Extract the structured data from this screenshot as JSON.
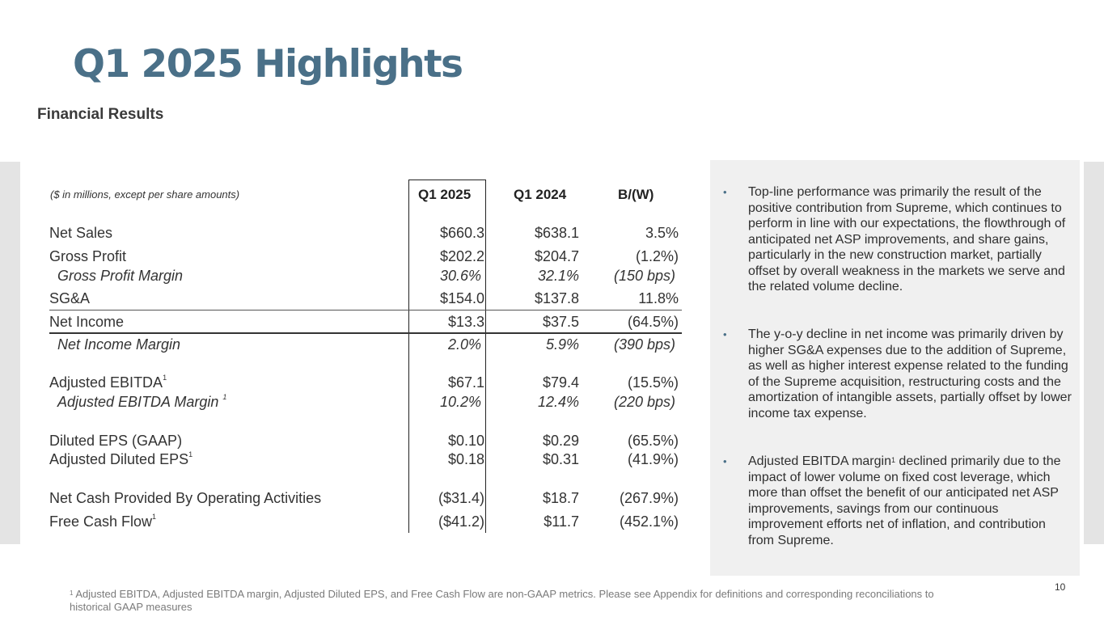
{
  "title": "Q1 2025 Highlights",
  "subtitle": "Financial Results",
  "table": {
    "note": "($ in millions, except per share amounts)",
    "columns": [
      "Q1 2025",
      "Q1 2024",
      "B/(W)"
    ],
    "rows": [
      {
        "label": "Net Sales",
        "v1": "$660.3",
        "v2": "$638.1",
        "v3": "3.5%"
      },
      {
        "label": "Gross Profit",
        "v1": "$202.2",
        "v2": "$204.7",
        "v3": "(1.2%)"
      },
      {
        "label": "Gross Profit Margin",
        "v1": "30.6%",
        "v2": "32.1%",
        "v3": "(150 bps)"
      },
      {
        "label": "SG&A",
        "v1": "$154.0",
        "v2": "$137.8",
        "v3": "11.8%"
      },
      {
        "label": "Net Income",
        "v1": "$13.3",
        "v2": "$37.5",
        "v3": "(64.5%)"
      },
      {
        "label": "Net Income Margin",
        "v1": "2.0%",
        "v2": "5.9%",
        "v3": "(390 bps)"
      },
      {
        "label": "Adjusted EBITDA",
        "sup": "1",
        "v1": "$67.1",
        "v2": "$79.4",
        "v3": "(15.5%)"
      },
      {
        "label": "Adjusted EBITDA Margin ",
        "sup": "1",
        "v1": "10.2%",
        "v2": "12.4%",
        "v3": "(220 bps)"
      },
      {
        "label": "Diluted EPS (GAAP)",
        "v1": "$0.10",
        "v2": "$0.29",
        "v3": "(65.5%)"
      },
      {
        "label": "Adjusted Diluted EPS",
        "sup": "1",
        "v1": "$0.18",
        "v2": "$0.31",
        "v3": "(41.9%)"
      },
      {
        "label": "Net Cash Provided By Operating Activities",
        "v1": "($31.4)",
        "v2": "$18.7",
        "v3": "(267.9%)"
      },
      {
        "label": "Free Cash Flow",
        "sup": "1",
        "v1": "($41.2)",
        "v2": "$11.7",
        "v3": "(452.1%)"
      }
    ]
  },
  "bullets": [
    {
      "text": "Top-line performance was primarily the result of the positive contribution from Supreme, which continues to perform in line with our expectations, the flowthrough of anticipated net ASP improvements, and share gains, particularly in the new construction market, partially offset by overall weakness in the markets we serve and the related volume decline."
    },
    {
      "text": "The y-o-y decline in net income was primarily driven by higher SG&A expenses due to the addition of Supreme, as well as higher interest expense related to the funding of the Supreme acquisition, restructuring costs and the amortization of intangible assets, partially offset by lower income tax expense."
    },
    {
      "before": "Adjusted EBITDA margin",
      "sup": "1",
      "after": " declined primarily due to the impact of lower volume on fixed cost leverage, which more than offset the benefit of our anticipated net ASP improvements, savings from our continuous improvement efforts net of inflation, and contribution from Supreme."
    }
  ],
  "footnote": {
    "sup": "1",
    "text": " Adjusted EBITDA, Adjusted EBITDA margin, Adjusted Diluted EPS, and Free Cash Flow  are non-GAAP metrics. Please see Appendix for definitions and corresponding reconciliations to historical GAAP measures"
  },
  "page_number": "10"
}
